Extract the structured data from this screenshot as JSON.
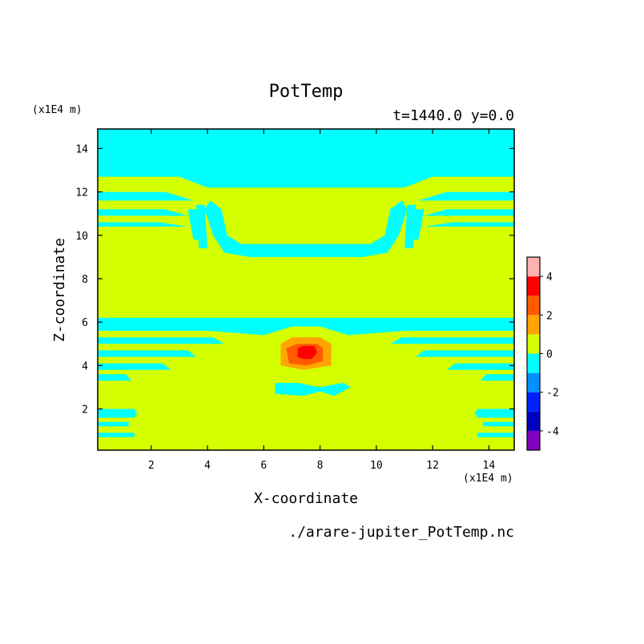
{
  "chart_data": {
    "type": "heatmap",
    "title": "PotTemp",
    "time_label": "t=1440.0 y=0.0",
    "source_label": "./arare-jupiter_PotTemp.nc",
    "xlabel": "X-coordinate",
    "ylabel": "Z-coordinate",
    "x_unit": "(x1E4 m)",
    "y_unit": "(x1E4 m)",
    "xlim": [
      0.1,
      14.9
    ],
    "ylim": [
      0.1,
      14.9
    ],
    "x_ticks": [
      "2",
      "4",
      "6",
      "8",
      "10",
      "12",
      "14"
    ],
    "y_ticks": [
      "2",
      "4",
      "6",
      "8",
      "10",
      "12",
      "14"
    ],
    "x_tick_values": [
      2,
      4,
      6,
      8,
      10,
      12,
      14
    ],
    "y_tick_values": [
      2,
      4,
      6,
      8,
      10,
      12,
      14
    ],
    "background_level": "0 to 1",
    "colorbar": {
      "levels": [
        -5,
        -4,
        -3,
        -2,
        -1,
        0,
        1,
        2,
        3,
        4,
        5
      ],
      "colors": [
        "#8000c0",
        "#0000c0",
        "#0020ff",
        "#0090ff",
        "#00ffff",
        "#d4ff00",
        "#ffa500",
        "#ff5a00",
        "#ff0000",
        "#ffb0b0"
      ],
      "tick_labels": [
        "-4",
        "-2",
        "0",
        "2",
        "4"
      ],
      "tick_values": [
        -4,
        -2,
        0,
        2,
        4
      ]
    },
    "regions": [
      {
        "name": "top-cold-layer",
        "level": "-1 to 0",
        "color": "#00ffff",
        "points": [
          [
            0.1,
            14.9
          ],
          [
            14.9,
            14.9
          ],
          [
            14.9,
            12.7
          ],
          [
            12,
            12.7
          ],
          [
            11,
            12.2
          ],
          [
            4,
            12.2
          ],
          [
            3,
            12.7
          ],
          [
            0.1,
            12.7
          ]
        ]
      },
      {
        "name": "band-left-1",
        "level": "-1 to 0",
        "color": "#00ffff",
        "points": [
          [
            0.1,
            12.0
          ],
          [
            2.5,
            12.0
          ],
          [
            3.5,
            11.6
          ],
          [
            2.5,
            11.6
          ],
          [
            0.1,
            11.6
          ]
        ]
      },
      {
        "name": "band-left-2",
        "level": "-1 to 0",
        "color": "#00ffff",
        "points": [
          [
            0.1,
            11.2
          ],
          [
            2.5,
            11.2
          ],
          [
            3.3,
            10.9
          ],
          [
            0.1,
            10.9
          ]
        ]
      },
      {
        "name": "band-left-3",
        "level": "-1 to 0",
        "color": "#00ffff",
        "points": [
          [
            0.1,
            10.6
          ],
          [
            2.3,
            10.6
          ],
          [
            3.3,
            10.4
          ],
          [
            0.1,
            10.4
          ]
        ]
      },
      {
        "name": "band-right-1",
        "level": "-1 to 0",
        "color": "#00ffff",
        "points": [
          [
            14.9,
            12.0
          ],
          [
            12.5,
            12.0
          ],
          [
            11.5,
            11.6
          ],
          [
            14.9,
            11.6
          ]
        ]
      },
      {
        "name": "band-right-2",
        "level": "-1 to 0",
        "color": "#00ffff",
        "points": [
          [
            14.9,
            11.2
          ],
          [
            12.5,
            11.2
          ],
          [
            11.7,
            10.9
          ],
          [
            14.9,
            10.9
          ]
        ]
      },
      {
        "name": "band-right-3",
        "level": "-1 to 0",
        "color": "#00ffff",
        "points": [
          [
            14.9,
            10.6
          ],
          [
            12.7,
            10.6
          ],
          [
            11.7,
            10.4
          ],
          [
            14.9,
            10.4
          ]
        ]
      },
      {
        "name": "upper-u-shape",
        "level": "-1 to 0",
        "color": "#00ffff",
        "points": [
          [
            4.1,
            11.6
          ],
          [
            3.9,
            11.2
          ],
          [
            4.2,
            10.0
          ],
          [
            4.6,
            9.2
          ],
          [
            5.5,
            9.0
          ],
          [
            9.5,
            9.0
          ],
          [
            10.4,
            9.2
          ],
          [
            10.8,
            10.0
          ],
          [
            11.1,
            11.2
          ],
          [
            10.9,
            11.6
          ],
          [
            10.5,
            11.2
          ],
          [
            10.3,
            10.0
          ],
          [
            9.8,
            9.6
          ],
          [
            5.2,
            9.6
          ],
          [
            4.7,
            10.0
          ],
          [
            4.5,
            11.2
          ]
        ]
      },
      {
        "name": "upper-strip-left-a",
        "level": "-1 to 0",
        "color": "#00ffff",
        "points": [
          [
            3.3,
            11.2
          ],
          [
            3.6,
            11.2
          ],
          [
            3.8,
            9.8
          ],
          [
            3.5,
            9.8
          ]
        ]
      },
      {
        "name": "upper-strip-left-b",
        "level": "-1 to 0",
        "color": "#00ffff",
        "points": [
          [
            3.6,
            11.4
          ],
          [
            3.9,
            11.4
          ],
          [
            4.0,
            9.4
          ],
          [
            3.7,
            9.4
          ]
        ]
      },
      {
        "name": "upper-strip-right-a",
        "level": "-1 to 0",
        "color": "#00ffff",
        "points": [
          [
            11.4,
            11.2
          ],
          [
            11.7,
            11.2
          ],
          [
            11.5,
            9.8
          ],
          [
            11.2,
            9.8
          ]
        ]
      },
      {
        "name": "upper-strip-right-b",
        "level": "-1 to 0",
        "color": "#00ffff",
        "points": [
          [
            11.1,
            11.4
          ],
          [
            11.4,
            11.4
          ],
          [
            11.3,
            9.4
          ],
          [
            11.0,
            9.4
          ]
        ]
      },
      {
        "name": "mid-wide-band",
        "level": "-1 to 0",
        "color": "#00ffff",
        "points": [
          [
            0.1,
            6.2
          ],
          [
            7.0,
            6.2
          ],
          [
            8.2,
            6.2
          ],
          [
            14.9,
            6.2
          ],
          [
            14.9,
            5.6
          ],
          [
            11,
            5.6
          ],
          [
            9,
            5.4
          ],
          [
            8,
            5.8
          ],
          [
            7,
            5.8
          ],
          [
            6,
            5.4
          ],
          [
            4,
            5.6
          ],
          [
            0.1,
            5.6
          ]
        ]
      },
      {
        "name": "mid-left-band-1",
        "level": "-1 to 0",
        "color": "#00ffff",
        "points": [
          [
            0.1,
            5.3
          ],
          [
            4.2,
            5.3
          ],
          [
            4.6,
            5.0
          ],
          [
            0.1,
            5.0
          ]
        ]
      },
      {
        "name": "mid-left-band-2",
        "level": "-1 to 0",
        "color": "#00ffff",
        "points": [
          [
            0.1,
            4.7
          ],
          [
            3.3,
            4.7
          ],
          [
            3.6,
            4.4
          ],
          [
            0.1,
            4.4
          ]
        ]
      },
      {
        "name": "mid-left-band-3",
        "level": "-1 to 0",
        "color": "#00ffff",
        "points": [
          [
            0.1,
            4.1
          ],
          [
            2.4,
            4.1
          ],
          [
            2.7,
            3.8
          ],
          [
            0.1,
            3.8
          ]
        ]
      },
      {
        "name": "mid-left-band-4",
        "level": "-1 to 0",
        "color": "#00ffff",
        "points": [
          [
            0.1,
            3.6
          ],
          [
            1.1,
            3.6
          ],
          [
            1.3,
            3.3
          ],
          [
            0.1,
            3.3
          ]
        ]
      },
      {
        "name": "mid-right-band-1",
        "level": "-1 to 0",
        "color": "#00ffff",
        "points": [
          [
            14.9,
            5.3
          ],
          [
            10.9,
            5.3
          ],
          [
            10.5,
            5.0
          ],
          [
            14.9,
            5.0
          ]
        ]
      },
      {
        "name": "mid-right-band-2",
        "level": "-1 to 0",
        "color": "#00ffff",
        "points": [
          [
            14.9,
            4.7
          ],
          [
            11.7,
            4.7
          ],
          [
            11.4,
            4.4
          ],
          [
            14.9,
            4.4
          ]
        ]
      },
      {
        "name": "mid-right-band-3",
        "level": "-1 to 0",
        "color": "#00ffff",
        "points": [
          [
            14.9,
            4.1
          ],
          [
            12.8,
            4.1
          ],
          [
            12.5,
            3.8
          ],
          [
            14.9,
            3.8
          ]
        ]
      },
      {
        "name": "mid-right-band-4",
        "level": "-1 to 0",
        "color": "#00ffff",
        "points": [
          [
            14.9,
            3.6
          ],
          [
            13.9,
            3.6
          ],
          [
            13.7,
            3.3
          ],
          [
            14.9,
            3.3
          ]
        ]
      },
      {
        "name": "lower-center-blob",
        "level": "-1 to 0",
        "color": "#00ffff",
        "points": [
          [
            6.4,
            3.2
          ],
          [
            7.2,
            3.2
          ],
          [
            8.0,
            3.0
          ],
          [
            8.8,
            3.2
          ],
          [
            9.1,
            3.0
          ],
          [
            8.5,
            2.6
          ],
          [
            8.0,
            2.8
          ],
          [
            7.4,
            2.6
          ],
          [
            6.4,
            2.7
          ]
        ]
      },
      {
        "name": "bottom-left-1",
        "level": "-1 to 0",
        "color": "#00ffff",
        "points": [
          [
            0.1,
            2.0
          ],
          [
            1.4,
            2.0
          ],
          [
            1.5,
            1.8
          ],
          [
            1.4,
            1.6
          ],
          [
            0.1,
            1.6
          ]
        ]
      },
      {
        "name": "bottom-left-2",
        "level": "-1 to 0",
        "color": "#00ffff",
        "points": [
          [
            0.1,
            1.4
          ],
          [
            1.2,
            1.4
          ],
          [
            1.2,
            1.2
          ],
          [
            0.1,
            1.2
          ]
        ]
      },
      {
        "name": "bottom-left-3",
        "level": "-1 to 0",
        "color": "#00ffff",
        "points": [
          [
            0.1,
            0.9
          ],
          [
            1.4,
            0.9
          ],
          [
            1.4,
            0.7
          ],
          [
            0.1,
            0.7
          ]
        ]
      },
      {
        "name": "bottom-right-1",
        "level": "-1 to 0",
        "color": "#00ffff",
        "points": [
          [
            14.9,
            2.0
          ],
          [
            13.6,
            2.0
          ],
          [
            13.5,
            1.8
          ],
          [
            13.6,
            1.6
          ],
          [
            14.9,
            1.6
          ]
        ]
      },
      {
        "name": "bottom-right-2",
        "level": "-1 to 0",
        "color": "#00ffff",
        "points": [
          [
            14.9,
            1.4
          ],
          [
            13.8,
            1.4
          ],
          [
            13.8,
            1.2
          ],
          [
            14.9,
            1.2
          ]
        ]
      },
      {
        "name": "bottom-right-3",
        "level": "-1 to 0",
        "color": "#00ffff",
        "points": [
          [
            14.9,
            0.9
          ],
          [
            13.6,
            0.9
          ],
          [
            13.6,
            0.7
          ],
          [
            14.9,
            0.7
          ]
        ]
      },
      {
        "name": "warm-bubble-outer",
        "level": "1 to 2",
        "color": "#ffa500",
        "points": [
          [
            6.6,
            4.0
          ],
          [
            6.6,
            5.0
          ],
          [
            7.0,
            5.3
          ],
          [
            8.0,
            5.3
          ],
          [
            8.4,
            5.0
          ],
          [
            8.4,
            4.0
          ],
          [
            7.4,
            3.8
          ]
        ]
      },
      {
        "name": "warm-bubble-middle",
        "level": "2 to 3",
        "color": "#ff5a00",
        "points": [
          [
            6.9,
            4.1
          ],
          [
            6.8,
            4.8
          ],
          [
            7.2,
            5.0
          ],
          [
            7.9,
            5.0
          ],
          [
            8.1,
            4.8
          ],
          [
            8.1,
            4.2
          ],
          [
            7.5,
            4.0
          ]
        ]
      },
      {
        "name": "warm-bubble-core",
        "level": "3 to 4",
        "color": "#ff0000",
        "points": [
          [
            7.2,
            4.4
          ],
          [
            7.2,
            4.8
          ],
          [
            7.4,
            4.9
          ],
          [
            7.8,
            4.9
          ],
          [
            7.9,
            4.6
          ],
          [
            7.7,
            4.3
          ],
          [
            7.4,
            4.3
          ]
        ]
      }
    ]
  }
}
